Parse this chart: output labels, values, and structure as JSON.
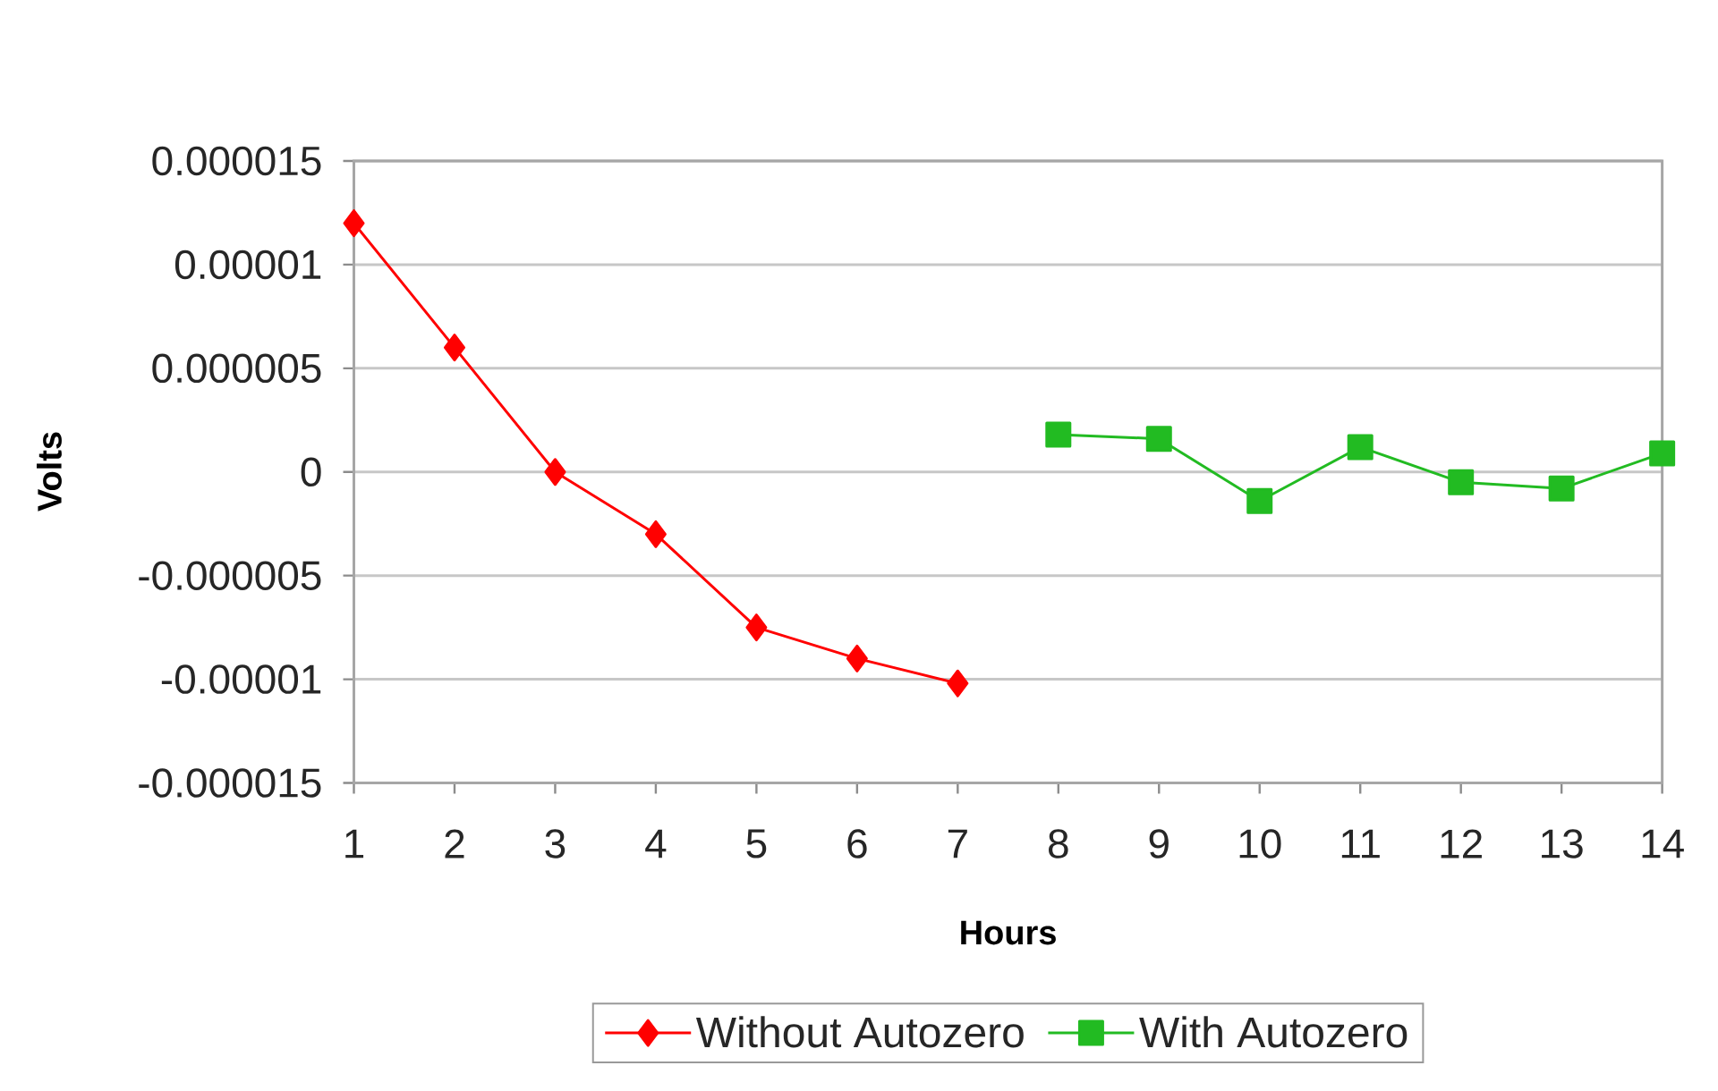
{
  "chart_data": {
    "type": "line",
    "categories": [
      "1",
      "2",
      "3",
      "4",
      "5",
      "6",
      "7",
      "8",
      "9",
      "10",
      "11",
      "12",
      "13",
      "14"
    ],
    "series": [
      {
        "name": "Without Autozero",
        "color": "#ff0000",
        "marker": "diamond",
        "values": [
          1.2e-05,
          6e-06,
          0,
          -3e-06,
          -7.5e-06,
          -9e-06,
          -1.02e-05,
          null,
          null,
          null,
          null,
          null,
          null,
          null
        ]
      },
      {
        "name": "With Autozero",
        "color": "#22bb22",
        "marker": "square",
        "values": [
          null,
          null,
          null,
          null,
          null,
          null,
          null,
          1.8e-06,
          1.6e-06,
          -1.4e-06,
          1.2e-06,
          -5e-07,
          -8e-07,
          9e-07
        ]
      }
    ],
    "xlabel": "Hours",
    "ylabel": "Volts",
    "ylim": [
      -1.5e-05,
      1.5e-05
    ],
    "yticks": [
      {
        "value": -1.5e-05,
        "label": "-0.000015"
      },
      {
        "value": -1e-05,
        "label": "-0.00001"
      },
      {
        "value": -5e-06,
        "label": "-0.000005"
      },
      {
        "value": 0,
        "label": "0"
      },
      {
        "value": 5e-06,
        "label": "0.000005"
      },
      {
        "value": 1e-05,
        "label": "0.00001"
      },
      {
        "value": 1.5e-05,
        "label": "0.000015"
      }
    ],
    "grid": "y",
    "legend": "bottom"
  }
}
